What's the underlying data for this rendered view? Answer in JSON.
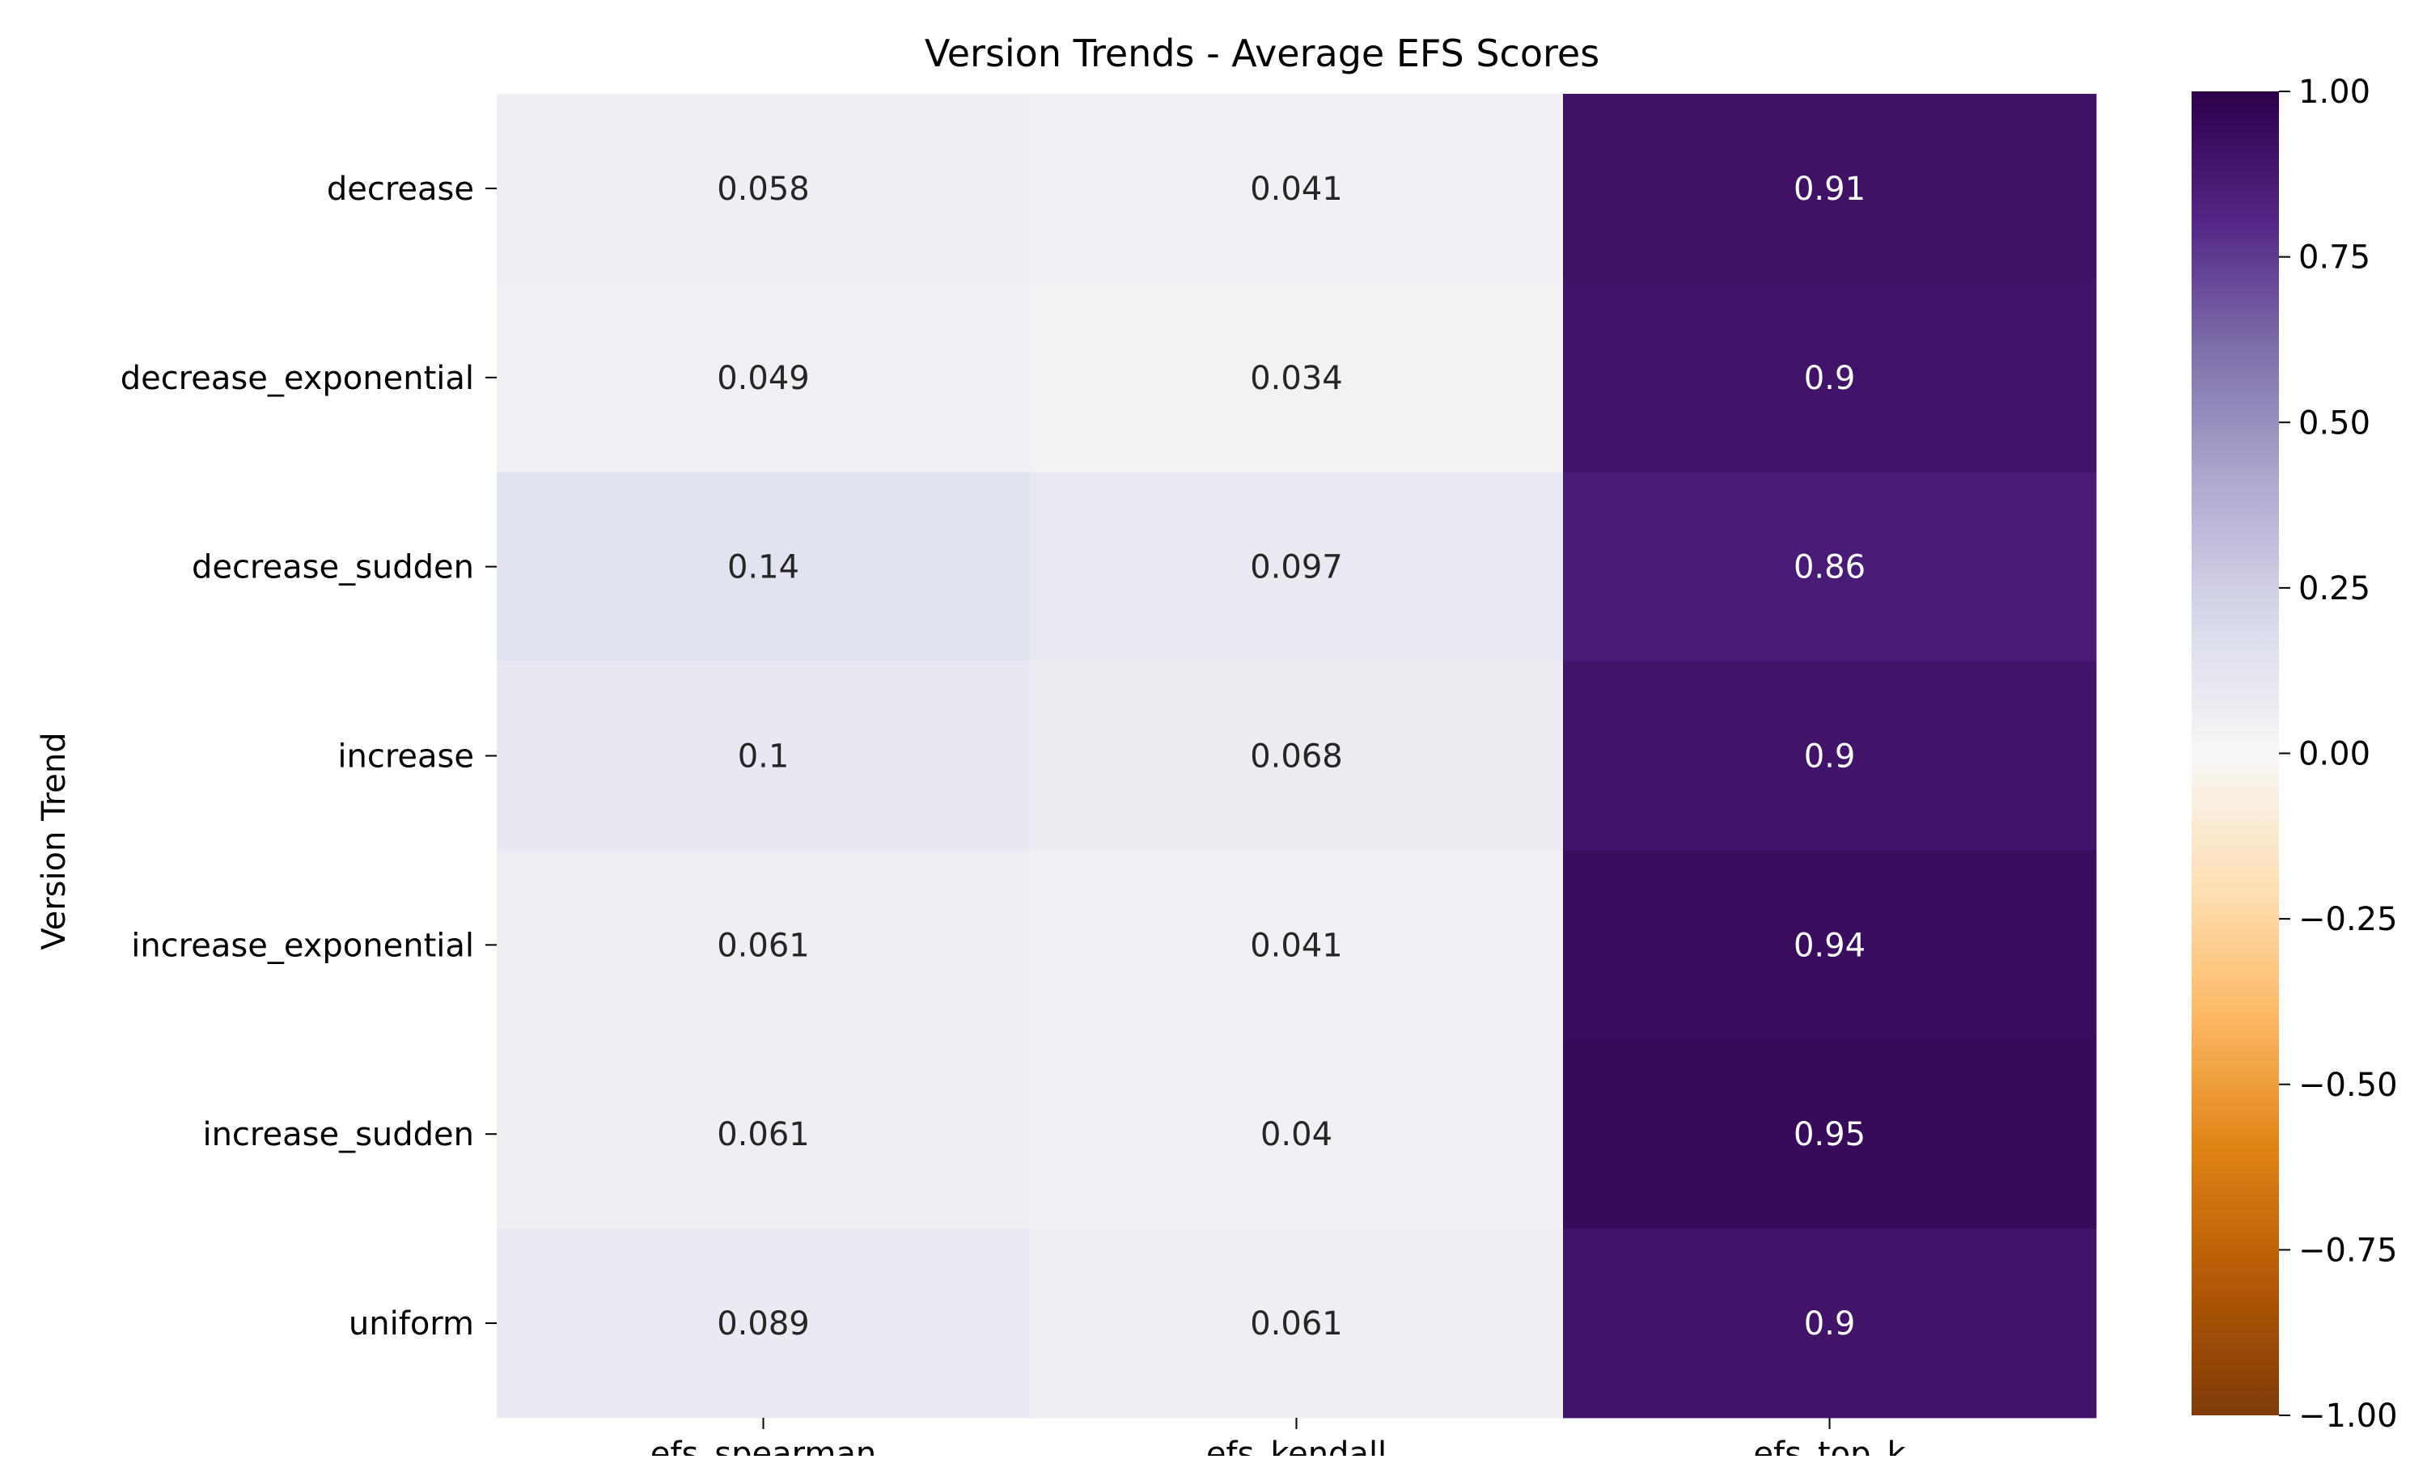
{
  "chart_data": {
    "type": "heatmap",
    "title": "Version Trends - Average EFS Scores",
    "xlabel": "",
    "ylabel": "Version Trend",
    "columns": [
      "efs_spearman",
      "efs_kendall",
      "efs_top_k"
    ],
    "rows": [
      "decrease",
      "decrease_exponential",
      "decrease_sudden",
      "increase",
      "increase_exponential",
      "increase_sudden",
      "uniform"
    ],
    "values": [
      [
        0.058,
        0.041,
        0.91
      ],
      [
        0.049,
        0.034,
        0.9
      ],
      [
        0.14,
        0.097,
        0.86
      ],
      [
        0.1,
        0.068,
        0.9
      ],
      [
        0.061,
        0.041,
        0.94
      ],
      [
        0.061,
        0.04,
        0.95
      ],
      [
        0.089,
        0.061,
        0.9
      ]
    ],
    "value_labels": [
      [
        "0.058",
        "0.041",
        "0.91"
      ],
      [
        "0.049",
        "0.034",
        "0.9"
      ],
      [
        "0.14",
        "0.097",
        "0.86"
      ],
      [
        "0.1",
        "0.068",
        "0.9"
      ],
      [
        "0.061",
        "0.041",
        "0.94"
      ],
      [
        "0.061",
        "0.04",
        "0.95"
      ],
      [
        "0.089",
        "0.061",
        "0.9"
      ]
    ],
    "colorbar": {
      "colormap": "PuOr",
      "vmin": -1.0,
      "vmax": 1.0,
      "ticks": [
        1.0,
        0.75,
        0.5,
        0.25,
        0.0,
        -0.25,
        -0.5,
        -0.75,
        -1.0
      ],
      "tick_labels": [
        "1.00",
        "0.75",
        "0.50",
        "0.25",
        "0.00",
        "−0.25",
        "−0.50",
        "−0.75",
        "−1.00"
      ]
    },
    "colors": {
      "text_dark": "#262626",
      "text_light": "#ffffff"
    }
  }
}
